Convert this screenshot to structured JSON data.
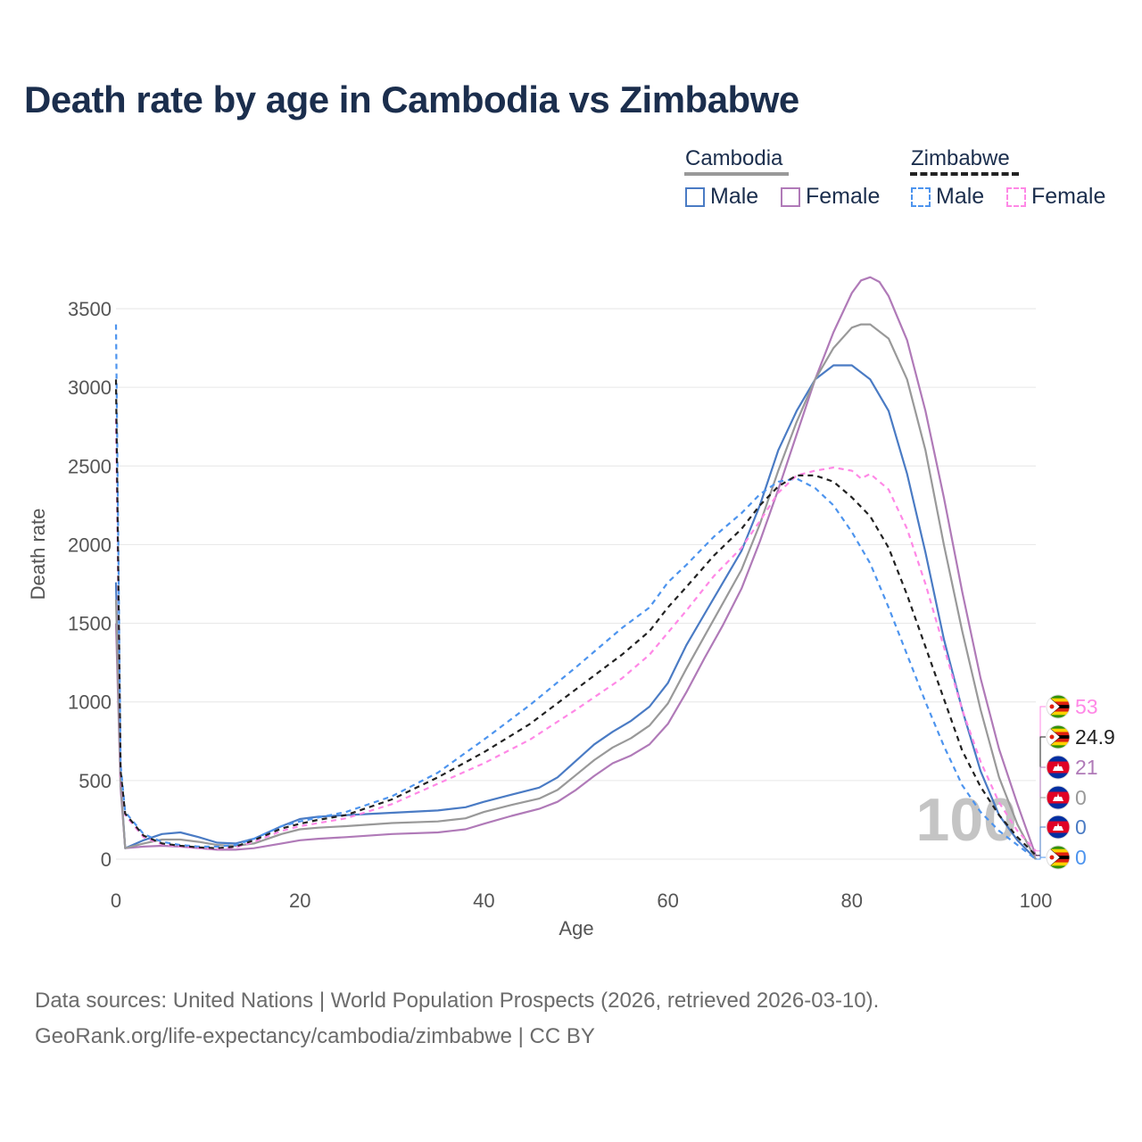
{
  "title": "Death rate by age in Cambodia vs Zimbabwe",
  "legend": {
    "groups": [
      {
        "name": "Cambodia",
        "line_style": "solid",
        "line_color": "#999999",
        "items": [
          {
            "label": "Male",
            "color": "#4a7bc4",
            "style": "solid"
          },
          {
            "label": "Female",
            "color": "#b07ab8",
            "style": "solid"
          }
        ]
      },
      {
        "name": "Zimbabwe",
        "line_style": "dashed",
        "line_color": "#222222",
        "items": [
          {
            "label": "Male",
            "color": "#4d94ee",
            "style": "dashed"
          },
          {
            "label": "Female",
            "color": "#ff88e6",
            "style": "dashed"
          }
        ]
      }
    ]
  },
  "watermark_age": "100",
  "end_labels": [
    {
      "text": "53",
      "color": "#ff88e6",
      "flag": "zimbabwe"
    },
    {
      "text": "24.9",
      "color": "#222222",
      "flag": "zimbabwe"
    },
    {
      "text": "21",
      "color": "#b07ab8",
      "flag": "cambodia"
    },
    {
      "text": "0",
      "color": "#999999",
      "flag": "cambodia"
    },
    {
      "text": "0",
      "color": "#4a7bc4",
      "flag": "cambodia"
    },
    {
      "text": "0",
      "color": "#4d94ee",
      "flag": "zimbabwe"
    }
  ],
  "footer": {
    "line1": "Data sources: United Nations | World Population Prospects (2026, retrieved 2026-03-10).",
    "line2": "GeoRank.org/life-expectancy/cambodia/zimbabwe | CC BY"
  },
  "chart_data": {
    "type": "line",
    "title": "Death rate by age in Cambodia vs Zimbabwe",
    "xlabel": "Age",
    "ylabel": "Death rate",
    "xlim": [
      0,
      100
    ],
    "ylim": [
      0,
      3500
    ],
    "xticks": [
      0,
      20,
      40,
      60,
      80,
      100
    ],
    "yticks": [
      0,
      500,
      1000,
      1500,
      2000,
      2500,
      3000,
      3500
    ],
    "grid": true,
    "series": [
      {
        "name": "Cambodia Male",
        "color": "#4a7bc4",
        "dash": "",
        "x": [
          0,
          0.5,
          1,
          3,
          5,
          7,
          9,
          11,
          13,
          15,
          18,
          20,
          22,
          25,
          30,
          35,
          38,
          40,
          43,
          46,
          48,
          50,
          52,
          54,
          56,
          58,
          60,
          62,
          64,
          66,
          68,
          70,
          72,
          74,
          76,
          78,
          80,
          82,
          84,
          86,
          88,
          90,
          92,
          94,
          96,
          98,
          100
        ],
        "y": [
          1760,
          500,
          70,
          120,
          160,
          170,
          140,
          105,
          100,
          130,
          210,
          255,
          270,
          280,
          295,
          310,
          330,
          365,
          410,
          455,
          520,
          625,
          730,
          810,
          880,
          970,
          1120,
          1360,
          1560,
          1760,
          1960,
          2250,
          2600,
          2850,
          3050,
          3140,
          3140,
          3050,
          2850,
          2450,
          1950,
          1400,
          950,
          560,
          280,
          120,
          0
        ]
      },
      {
        "name": "Cambodia Female",
        "color": "#b07ab8",
        "dash": "",
        "x": [
          0,
          0.5,
          1,
          3,
          5,
          7,
          9,
          11,
          13,
          15,
          18,
          20,
          22,
          25,
          30,
          35,
          38,
          40,
          43,
          46,
          48,
          50,
          52,
          54,
          56,
          58,
          60,
          62,
          64,
          66,
          68,
          70,
          72,
          74,
          76,
          78,
          80,
          81,
          82,
          83,
          84,
          86,
          88,
          90,
          92,
          94,
          96,
          98,
          100
        ],
        "y": [
          1500,
          450,
          70,
          80,
          85,
          80,
          70,
          60,
          60,
          70,
          100,
          120,
          130,
          140,
          160,
          170,
          190,
          225,
          275,
          320,
          365,
          440,
          530,
          610,
          660,
          730,
          860,
          1060,
          1280,
          1490,
          1720,
          2020,
          2350,
          2700,
          3050,
          3350,
          3600,
          3680,
          3700,
          3670,
          3580,
          3300,
          2850,
          2300,
          1700,
          1150,
          700,
          350,
          21
        ]
      },
      {
        "name": "Cambodia Total",
        "color": "#999999",
        "dash": "",
        "x": [
          0,
          0.5,
          1,
          3,
          5,
          7,
          9,
          11,
          13,
          15,
          18,
          20,
          22,
          25,
          30,
          35,
          38,
          40,
          43,
          46,
          48,
          50,
          52,
          54,
          56,
          58,
          60,
          62,
          64,
          66,
          68,
          70,
          72,
          74,
          76,
          78,
          80,
          81,
          82,
          84,
          86,
          88,
          90,
          92,
          94,
          96,
          98,
          100
        ],
        "y": [
          1650,
          480,
          70,
          100,
          125,
          125,
          110,
          90,
          85,
          100,
          160,
          190,
          200,
          210,
          230,
          240,
          260,
          300,
          345,
          385,
          440,
          535,
          630,
          710,
          770,
          850,
          990,
          1210,
          1420,
          1630,
          1840,
          2130,
          2470,
          2780,
          3050,
          3250,
          3380,
          3400,
          3400,
          3310,
          3050,
          2600,
          2000,
          1450,
          950,
          520,
          220,
          0
        ]
      },
      {
        "name": "Zimbabwe Male",
        "color": "#4d94ee",
        "dash": "6,5",
        "x": [
          0,
          0.5,
          1,
          3,
          5,
          7,
          9,
          11,
          13,
          15,
          18,
          20,
          22,
          25,
          30,
          35,
          40,
          45,
          50,
          55,
          58,
          60,
          62,
          65,
          68,
          70,
          72,
          74,
          76,
          78,
          80,
          82,
          84,
          86,
          88,
          90,
          92,
          94,
          96,
          98,
          100
        ],
        "y": [
          3400,
          600,
          300,
          160,
          110,
          90,
          80,
          80,
          90,
          130,
          210,
          240,
          265,
          300,
          400,
          550,
          760,
          980,
          1220,
          1470,
          1600,
          1760,
          1870,
          2050,
          2200,
          2320,
          2400,
          2420,
          2360,
          2250,
          2080,
          1880,
          1600,
          1300,
          1000,
          720,
          470,
          300,
          180,
          90,
          0
        ]
      },
      {
        "name": "Zimbabwe Female",
        "color": "#ff88e6",
        "dash": "6,5",
        "x": [
          0,
          0.5,
          1,
          3,
          5,
          7,
          9,
          11,
          13,
          15,
          18,
          20,
          22,
          25,
          30,
          35,
          40,
          45,
          50,
          55,
          58,
          60,
          62,
          65,
          68,
          70,
          72,
          74,
          76,
          78,
          80,
          81,
          82,
          84,
          86,
          88,
          90,
          92,
          94,
          96,
          98,
          100
        ],
        "y": [
          2800,
          520,
          280,
          140,
          95,
          80,
          70,
          65,
          75,
          110,
          180,
          210,
          230,
          260,
          350,
          480,
          610,
          760,
          950,
          1150,
          1300,
          1440,
          1580,
          1800,
          1980,
          2150,
          2330,
          2440,
          2470,
          2490,
          2470,
          2420,
          2450,
          2350,
          2100,
          1750,
          1350,
          950,
          620,
          360,
          180,
          53
        ]
      },
      {
        "name": "Zimbabwe Total",
        "color": "#222222",
        "dash": "6,5",
        "x": [
          0,
          0.5,
          1,
          3,
          5,
          7,
          9,
          11,
          13,
          15,
          18,
          20,
          22,
          25,
          30,
          35,
          40,
          45,
          50,
          55,
          58,
          60,
          62,
          65,
          68,
          70,
          72,
          74,
          76,
          78,
          80,
          82,
          84,
          86,
          88,
          90,
          92,
          94,
          96,
          98,
          100
        ],
        "y": [
          3050,
          560,
          290,
          150,
          100,
          85,
          75,
          70,
          80,
          120,
          195,
          225,
          250,
          280,
          380,
          520,
          680,
          860,
          1080,
          1300,
          1450,
          1600,
          1730,
          1930,
          2100,
          2250,
          2370,
          2440,
          2440,
          2400,
          2300,
          2180,
          1980,
          1680,
          1350,
          1020,
          690,
          460,
          280,
          140,
          24.9
        ]
      }
    ]
  }
}
